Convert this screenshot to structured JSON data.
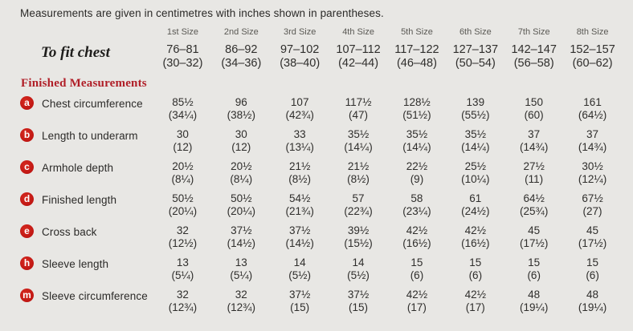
{
  "intro": "Measurements are given in centimetres with inches shown in parentheses.",
  "size_headers": [
    "1st Size",
    "2nd Size",
    "3rd Size",
    "4th Size",
    "5th Size",
    "6th Size",
    "7th Size",
    "8th Size"
  ],
  "to_fit": {
    "label": "To fit chest",
    "values": [
      [
        "76–81",
        "(30–32)"
      ],
      [
        "86–92",
        "(34–36)"
      ],
      [
        "97–102",
        "(38–40)"
      ],
      [
        "107–112",
        "(42–44)"
      ],
      [
        "117–122",
        "(46–48)"
      ],
      [
        "127–137",
        "(50–54)"
      ],
      [
        "142–147",
        "(56–58)"
      ],
      [
        "152–157",
        "(60–62)"
      ]
    ]
  },
  "section_title": "Finished Measurements",
  "rows": [
    {
      "badge": "a",
      "label": "Chest circumference",
      "values": [
        [
          "85½",
          "(34¼)"
        ],
        [
          "96",
          "(38½)"
        ],
        [
          "107",
          "(42¾)"
        ],
        [
          "117½",
          "(47)"
        ],
        [
          "128½",
          "(51½)"
        ],
        [
          "139",
          "(55½)"
        ],
        [
          "150",
          "(60)"
        ],
        [
          "161",
          "(64½)"
        ]
      ]
    },
    {
      "badge": "b",
      "label": "Length to underarm",
      "values": [
        [
          "30",
          "(12)"
        ],
        [
          "30",
          "(12)"
        ],
        [
          "33",
          "(13¼)"
        ],
        [
          "35½",
          "(14¼)"
        ],
        [
          "35½",
          "(14¼)"
        ],
        [
          "35½",
          "(14¼)"
        ],
        [
          "37",
          "(14¾)"
        ],
        [
          "37",
          "(14¾)"
        ]
      ]
    },
    {
      "badge": "c",
      "label": "Armhole depth",
      "values": [
        [
          "20½",
          "(8¼)"
        ],
        [
          "20½",
          "(8¼)"
        ],
        [
          "21½",
          "(8½)"
        ],
        [
          "21½",
          "(8½)"
        ],
        [
          "22½",
          "(9)"
        ],
        [
          "25½",
          "(10¼)"
        ],
        [
          "27½",
          "(11)"
        ],
        [
          "30½",
          "(12¼)"
        ]
      ]
    },
    {
      "badge": "d",
      "label": "Finished length",
      "values": [
        [
          "50½",
          "(20¼)"
        ],
        [
          "50½",
          "(20¼)"
        ],
        [
          "54½",
          "(21¾)"
        ],
        [
          "57",
          "(22¾)"
        ],
        [
          "58",
          "(23¼)"
        ],
        [
          "61",
          "(24½)"
        ],
        [
          "64½",
          "(25¾)"
        ],
        [
          "67½",
          "(27)"
        ]
      ]
    },
    {
      "badge": "e",
      "label": "Cross back",
      "values": [
        [
          "32",
          "(12½)"
        ],
        [
          "37½",
          "(14½)"
        ],
        [
          "37½",
          "(14½)"
        ],
        [
          "39½",
          "(15½)"
        ],
        [
          "42½",
          "(16½)"
        ],
        [
          "42½",
          "(16½)"
        ],
        [
          "45",
          "(17½)"
        ],
        [
          "45",
          "(17½)"
        ]
      ]
    },
    {
      "badge": "h",
      "label": "Sleeve length",
      "values": [
        [
          "13",
          "(5¼)"
        ],
        [
          "13",
          "(5¼)"
        ],
        [
          "14",
          "(5½)"
        ],
        [
          "14",
          "(5½)"
        ],
        [
          "15",
          "(6)"
        ],
        [
          "15",
          "(6)"
        ],
        [
          "15",
          "(6)"
        ],
        [
          "15",
          "(6)"
        ]
      ]
    },
    {
      "badge": "m",
      "label": "Sleeve circumference",
      "values": [
        [
          "32",
          "(12¾)"
        ],
        [
          "32",
          "(12¾)"
        ],
        [
          "37½",
          "(15)"
        ],
        [
          "37½",
          "(15)"
        ],
        [
          "42½",
          "(17)"
        ],
        [
          "42½",
          "(17)"
        ],
        [
          "48",
          "(19¼)"
        ],
        [
          "48",
          "(19¼)"
        ]
      ]
    }
  ],
  "colors": {
    "background": "#e8e7e4",
    "heading_red": "#b01e27",
    "badge_red": "#c01713",
    "badge_letter": "#ffffff",
    "text": "#2f2e2c",
    "size_header_gray": "#5a5954"
  }
}
